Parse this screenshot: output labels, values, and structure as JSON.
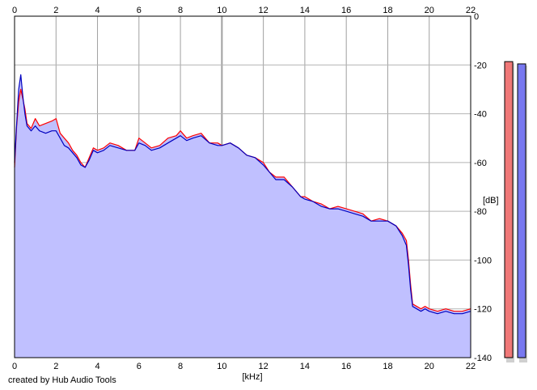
{
  "chart_data": {
    "type": "area",
    "title": "",
    "xlabel": "[kHz]",
    "ylabel": "[dB]",
    "xlim": [
      0,
      22
    ],
    "ylim": [
      -140,
      0
    ],
    "x_ticks": [
      "0",
      "2",
      "4",
      "6",
      "8",
      "10",
      "12",
      "14",
      "16",
      "18",
      "20",
      "22"
    ],
    "y_ticks": [
      "0",
      "-20",
      "-40",
      "-60",
      "-80",
      "-100",
      "-120",
      "-140"
    ],
    "grid": true,
    "series": [
      {
        "color": "#ff0000",
        "x": [
          0,
          0.1,
          0.2,
          0.3,
          0.4,
          0.5,
          0.6,
          0.8,
          1.0,
          1.2,
          1.5,
          1.8,
          2.0,
          2.2,
          2.4,
          2.6,
          2.8,
          3.0,
          3.2,
          3.4,
          3.6,
          3.8,
          4.0,
          4.3,
          4.6,
          5.0,
          5.4,
          5.8,
          6.0,
          6.3,
          6.6,
          7.0,
          7.4,
          7.8,
          8.0,
          8.3,
          8.6,
          9.0,
          9.4,
          9.8,
          10.0,
          10.4,
          10.8,
          11.2,
          11.6,
          12.0,
          12.3,
          12.6,
          13.0,
          13.4,
          13.8,
          14.0,
          14.4,
          14.8,
          15.2,
          15.6,
          16.0,
          16.4,
          16.8,
          17.2,
          17.6,
          18.0,
          18.4,
          18.7,
          18.9,
          19.0,
          19.1,
          19.2,
          19.4,
          19.6,
          19.8,
          20.0,
          20.4,
          20.8,
          21.2,
          21.6,
          22.0
        ],
        "values": [
          -62,
          -45,
          -35,
          -30,
          -34,
          -38,
          -44,
          -46,
          -42,
          -45,
          -44,
          -43,
          -42,
          -48,
          -50,
          -52,
          -55,
          -57,
          -60,
          -62,
          -58,
          -54,
          -55,
          -54,
          -52,
          -53,
          -55,
          -55,
          -50,
          -52,
          -54,
          -53,
          -50,
          -49,
          -47,
          -50,
          -49,
          -48,
          -52,
          -52,
          -53,
          -52,
          -54,
          -57,
          -58,
          -60,
          -64,
          -66,
          -66,
          -70,
          -74,
          -74,
          -76,
          -77,
          -79,
          -78,
          -79,
          -80,
          -81,
          -84,
          -83,
          -84,
          -86,
          -89,
          -92,
          -100,
          -110,
          -118,
          -119,
          -120,
          -119,
          -120,
          -121,
          -120,
          -121,
          -121,
          -120
        ]
      },
      {
        "color": "#0000c0",
        "x": [
          0,
          0.1,
          0.2,
          0.3,
          0.4,
          0.5,
          0.6,
          0.8,
          1.0,
          1.2,
          1.5,
          1.8,
          2.0,
          2.2,
          2.4,
          2.6,
          2.8,
          3.0,
          3.2,
          3.4,
          3.6,
          3.8,
          4.0,
          4.3,
          4.6,
          5.0,
          5.4,
          5.8,
          6.0,
          6.3,
          6.6,
          7.0,
          7.4,
          7.8,
          8.0,
          8.3,
          8.6,
          9.0,
          9.4,
          9.8,
          10.0,
          10.4,
          10.8,
          11.2,
          11.6,
          12.0,
          12.3,
          12.6,
          13.0,
          13.4,
          13.8,
          14.0,
          14.4,
          14.8,
          15.2,
          15.6,
          16.0,
          16.4,
          16.8,
          17.2,
          17.6,
          18.0,
          18.4,
          18.7,
          18.9,
          19.0,
          19.1,
          19.2,
          19.4,
          19.6,
          19.8,
          20.0,
          20.4,
          20.8,
          21.2,
          21.6,
          22.0
        ],
        "values": [
          -60,
          -44,
          -30,
          -24,
          -33,
          -40,
          -45,
          -47,
          -45,
          -47,
          -48,
          -47,
          -47,
          -50,
          -53,
          -54,
          -56,
          -58,
          -61,
          -62,
          -59,
          -55,
          -56,
          -55,
          -53,
          -54,
          -55,
          -55,
          -52,
          -53,
          -55,
          -54,
          -52,
          -50,
          -49,
          -51,
          -50,
          -49,
          -52,
          -53,
          -53,
          -52,
          -54,
          -57,
          -58,
          -61,
          -64,
          -67,
          -67,
          -70,
          -74,
          -75,
          -76,
          -78,
          -79,
          -79,
          -80,
          -81,
          -82,
          -84,
          -84,
          -84,
          -86,
          -90,
          -94,
          -102,
          -112,
          -119,
          -120,
          -121,
          -120,
          -121,
          -122,
          -121,
          -122,
          -122,
          -121
        ]
      }
    ],
    "level_meters": {
      "left": {
        "color": "#f07878",
        "level_db": -10,
        "range": [
          -140,
          0
        ]
      },
      "right": {
        "color": "#7878f0",
        "level_db": -11,
        "range": [
          -140,
          0
        ]
      }
    }
  },
  "footer": {
    "credit": "created by Hub Audio Tools"
  }
}
